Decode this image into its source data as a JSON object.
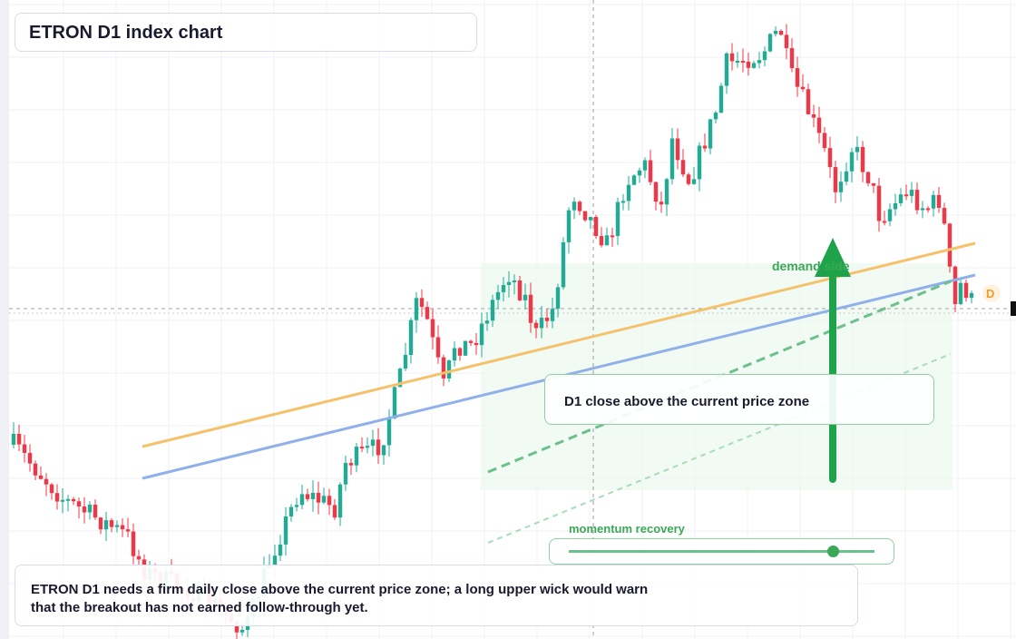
{
  "header": {
    "title": "ETRON D1 index chart"
  },
  "chart": {
    "demand_label": "demand side",
    "marker": "D",
    "callout": "D1 close above the current price zone",
    "slider_label": "momentum recovery"
  },
  "note": {
    "text": "ETRON D1 needs a firm daily close above the current price zone; a long upper wick would warn that the breakout has not earned follow-through yet."
  }
}
